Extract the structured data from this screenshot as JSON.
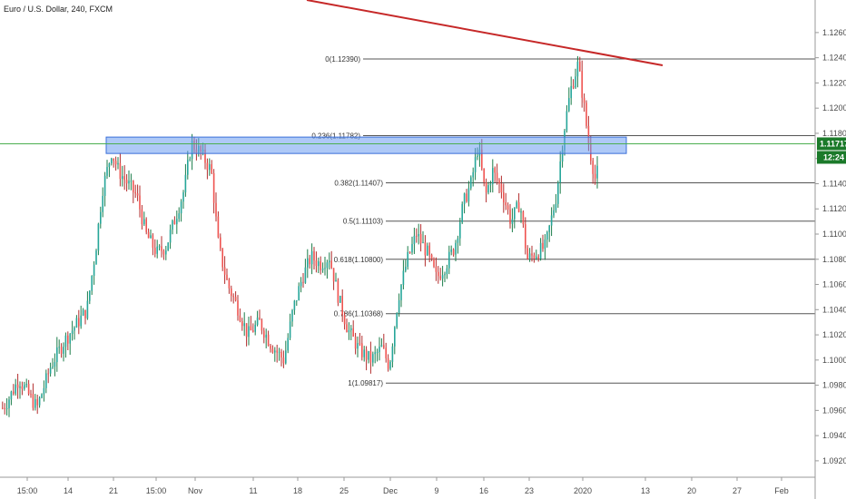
{
  "header": {
    "title": "Euro / U.S. Dollar, 240, FXCM"
  },
  "colors": {
    "up": "#26a69a",
    "down": "#ef5350",
    "wick_up": "#1b7d4a",
    "wick_down": "#b22d2d",
    "trendline": "#c62828",
    "zone_fill": "#6c9cf0",
    "zone_stroke": "#3a6fd8",
    "price_line": "#4caf50",
    "badge": "#1b7a2a",
    "fib_line": "#555555"
  },
  "chart_data": {
    "type": "candlestick",
    "symbol": "Euro / U.S. Dollar",
    "interval": "240",
    "source": "FXCM",
    "ylim": [
      1.0912,
      1.127
    ],
    "y_ticks": [
      "1.12600",
      "1.12400",
      "1.12200",
      "1.12000",
      "1.11800",
      "1.11600",
      "1.11400",
      "1.11200",
      "1.11000",
      "1.10800",
      "1.10600",
      "1.10400",
      "1.10200",
      "1.10000",
      "1.09800",
      "1.09600",
      "1.09400",
      "1.09200"
    ],
    "x_ticks": [
      "15:00",
      "14",
      "21",
      "15:00",
      "Nov",
      "11",
      "18",
      "25",
      "Dec",
      "9",
      "16",
      "23",
      "2020",
      "13",
      "20",
      "27",
      "Feb"
    ],
    "fibonacci": [
      {
        "label": "0(1.12390)",
        "value": 1.1239
      },
      {
        "label": "0.236(1.11782)",
        "value": 1.11782
      },
      {
        "label": "0.382(1.11407)",
        "value": 1.11407
      },
      {
        "label": "0.5(1.11103)",
        "value": 1.11103
      },
      {
        "label": "0.618(1.10800)",
        "value": 1.108
      },
      {
        "label": "0.786(1.10368)",
        "value": 1.10368
      },
      {
        "label": "1(1.09817)",
        "value": 1.09817
      }
    ],
    "last_price": "1.11717",
    "countdown": "12:24",
    "resistance_zone": [
      1.1164,
      1.1177
    ],
    "price_path": [
      [
        0,
        1.096
      ],
      [
        8,
        1.0968
      ],
      [
        20,
        1.0985
      ],
      [
        40,
        1.0962
      ],
      [
        55,
        1.0995
      ],
      [
        70,
        1.1015
      ],
      [
        85,
        1.103
      ],
      [
        95,
        1.104
      ],
      [
        105,
        1.109
      ],
      [
        112,
        1.1135
      ],
      [
        122,
        1.1165
      ],
      [
        130,
        1.115
      ],
      [
        140,
        1.114
      ],
      [
        150,
        1.113
      ],
      [
        160,
        1.11
      ],
      [
        172,
        1.1085
      ],
      [
        182,
        1.109
      ],
      [
        192,
        1.1112
      ],
      [
        202,
        1.1135
      ],
      [
        210,
        1.1172
      ],
      [
        220,
        1.1165
      ],
      [
        232,
        1.115
      ],
      [
        240,
        1.109
      ],
      [
        250,
        1.106
      ],
      [
        262,
        1.104
      ],
      [
        272,
        1.102
      ],
      [
        285,
        1.103
      ],
      [
        298,
        1.1012
      ],
      [
        312,
        1.1
      ],
      [
        322,
        1.104
      ],
      [
        332,
        1.1065
      ],
      [
        342,
        1.1082
      ],
      [
        352,
        1.1076
      ],
      [
        362,
        1.1082
      ],
      [
        372,
        1.105
      ],
      [
        382,
        1.1025
      ],
      [
        395,
        1.1008
      ],
      [
        408,
        1.1
      ],
      [
        420,
        1.101
      ],
      [
        428,
        1.0995
      ],
      [
        438,
        1.105
      ],
      [
        448,
        1.108
      ],
      [
        458,
        1.11
      ],
      [
        470,
        1.1085
      ],
      [
        480,
        1.1065
      ],
      [
        490,
        1.1075
      ],
      [
        500,
        1.109
      ],
      [
        510,
        1.1125
      ],
      [
        518,
        1.114
      ],
      [
        526,
        1.117
      ],
      [
        534,
        1.113
      ],
      [
        542,
        1.115
      ],
      [
        552,
        1.1135
      ],
      [
        562,
        1.111
      ],
      [
        572,
        1.1125
      ],
      [
        580,
        1.108
      ],
      [
        590,
        1.1085
      ],
      [
        600,
        1.109
      ],
      [
        612,
        1.113
      ],
      [
        620,
        1.118
      ],
      [
        628,
        1.1215
      ],
      [
        636,
        1.1235
      ],
      [
        642,
        1.1205
      ],
      [
        648,
        1.117
      ],
      [
        656,
        1.114
      ],
      [
        660,
        1.117
      ]
    ]
  }
}
